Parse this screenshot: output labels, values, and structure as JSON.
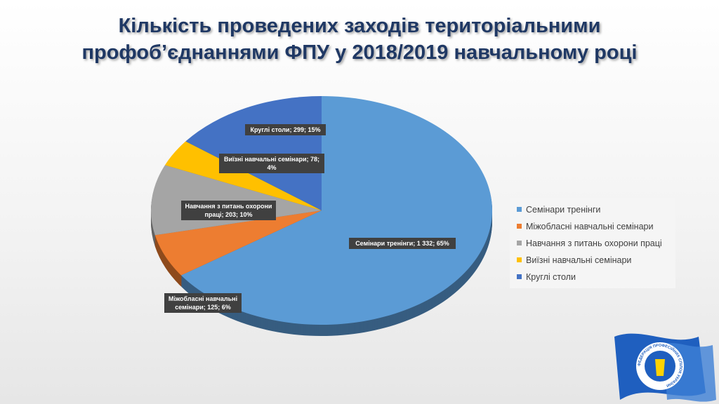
{
  "chart_data": {
    "type": "pie",
    "title": "Кількість проведених заходів територіальними профоб’єднаннями ФПУ у 2018/2019 навчальному році",
    "categories": [
      "Семінари тренінги",
      "Міжобласні навчальні семінари",
      "Навчання з питань охорони праці",
      "Виїзні навчальні семінари",
      "Круглі столи"
    ],
    "values": [
      1332,
      125,
      203,
      78,
      299
    ],
    "value_labels": [
      "Семінари тренінги; 1 332; 65%",
      "Міжобласні навчальні семінари; 125; 6%",
      "Навчання з питань охорони праці; 203; 10%",
      "Виїзні навчальні семінари; 78; 4%",
      "Круглі столи; 299; 15%"
    ],
    "colors": [
      "#5b9bd5",
      "#ed7d31",
      "#a5a5a5",
      "#ffc000",
      "#4472c4"
    ],
    "legend": "right"
  },
  "logo_text": "ФЕДЕРАЦІЯ ПРОФЕСІЙНИХ СПІЛОК УКРАЇНИ"
}
